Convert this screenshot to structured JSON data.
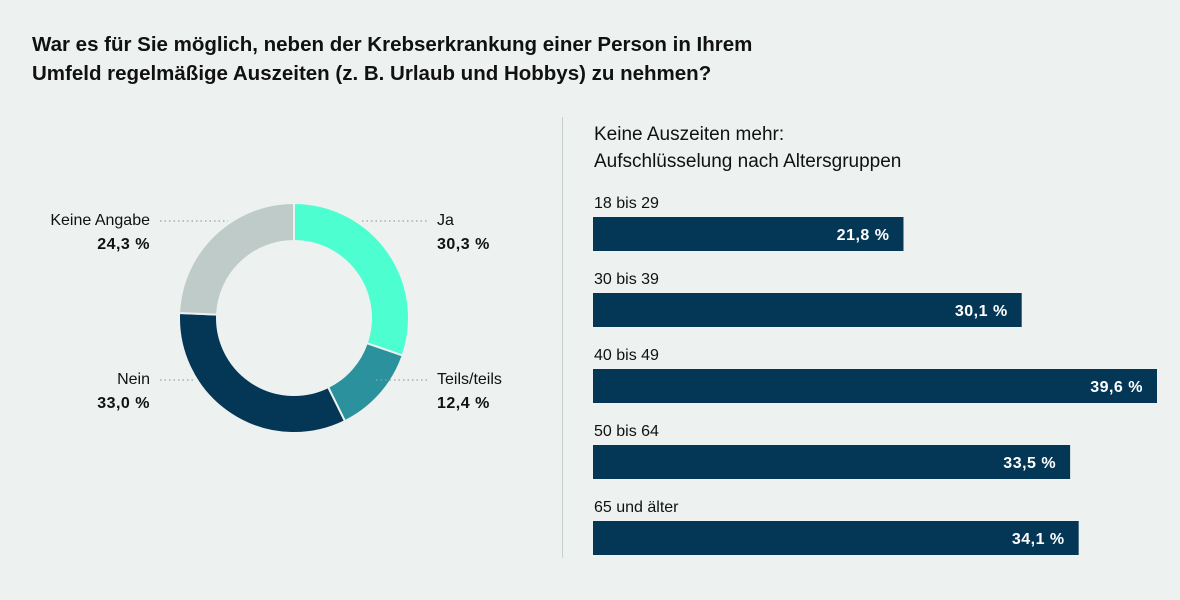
{
  "title": {
    "line1": "War es für Sie möglich, neben der Krebserkrankung einer Person in Ihrem",
    "line2": "Umfeld regelmäßige Auszeiten (z. B. Urlaub und Hobbys) zu nehmen?"
  },
  "chart_data": [
    {
      "type": "pie",
      "variant": "donut",
      "slices": [
        {
          "label": "Ja",
          "value": 30.3,
          "display": "30,3 %",
          "color": "#4dffd0"
        },
        {
          "label": "Teils/teils",
          "value": 12.4,
          "display": "12,4 %",
          "color": "#2b919c"
        },
        {
          "label": "Nein",
          "value": 33.0,
          "display": "33,0 %",
          "color": "#043656"
        },
        {
          "label": "Keine Angabe",
          "value": 24.3,
          "display": "24,3 %",
          "color": "#bfcbc8"
        }
      ]
    },
    {
      "type": "bar",
      "orientation": "horizontal",
      "title_line1": "Keine Auszeiten mehr:",
      "title_line2": "Aufschlüsselung nach Altersgruppen",
      "categories": [
        "18 bis 29",
        "30 bis 39",
        "40 bis 49",
        "50 bis 64",
        "65 und älter"
      ],
      "values": [
        21.8,
        30.1,
        39.6,
        33.5,
        34.1
      ],
      "value_labels": [
        "21,8 %",
        "30,1 %",
        "39,6 %",
        "33,5 %",
        "34,1 %"
      ],
      "bar_color": "#043656",
      "xlim": [
        0,
        39.6
      ]
    }
  ]
}
